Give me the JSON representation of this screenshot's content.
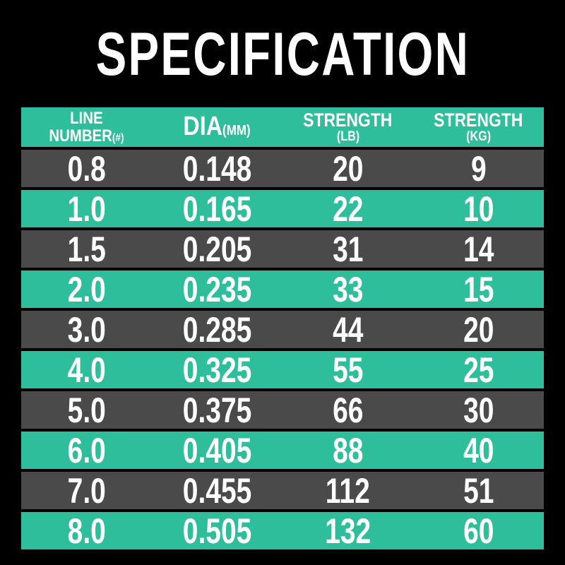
{
  "title": "SPECIFICATION",
  "colors": {
    "background": "#000000",
    "teal": "#2fbe9b",
    "gray": "#4a4a4a",
    "text": "#ffffff"
  },
  "table": {
    "columns": [
      {
        "line1": "LINE",
        "line2": "NUMBER",
        "sub": "(#)"
      },
      {
        "line1": "DIA",
        "sub": "(MM)"
      },
      {
        "line1": "STRENGTH",
        "sub": "(LB)"
      },
      {
        "line1": "STRENGTH",
        "sub": "(KG)"
      }
    ],
    "rows": [
      [
        "0.8",
        "0.148",
        "20",
        "9"
      ],
      [
        "1.0",
        "0.165",
        "22",
        "10"
      ],
      [
        "1.5",
        "0.205",
        "31",
        "14"
      ],
      [
        "2.0",
        "0.235",
        "33",
        "15"
      ],
      [
        "3.0",
        "0.285",
        "44",
        "20"
      ],
      [
        "4.0",
        "0.325",
        "55",
        "25"
      ],
      [
        "5.0",
        "0.375",
        "66",
        "30"
      ],
      [
        "6.0",
        "0.405",
        "88",
        "40"
      ],
      [
        "7.0",
        "0.455",
        "112",
        "51"
      ],
      [
        "8.0",
        "0.505",
        "132",
        "60"
      ]
    ]
  },
  "chart_data": {
    "type": "table",
    "title": "SPECIFICATION",
    "columns": [
      "LINE NUMBER(#)",
      "DIA(MM)",
      "STRENGTH(LB)",
      "STRENGTH(KG)"
    ],
    "rows": [
      [
        0.8,
        0.148,
        20,
        9
      ],
      [
        1.0,
        0.165,
        22,
        10
      ],
      [
        1.5,
        0.205,
        31,
        14
      ],
      [
        2.0,
        0.235,
        33,
        15
      ],
      [
        3.0,
        0.285,
        44,
        20
      ],
      [
        4.0,
        0.325,
        55,
        25
      ],
      [
        5.0,
        0.375,
        66,
        30
      ],
      [
        6.0,
        0.405,
        88,
        40
      ],
      [
        7.0,
        0.455,
        112,
        51
      ],
      [
        8.0,
        0.505,
        132,
        60
      ]
    ],
    "layout": {
      "row_striping": [
        "gray",
        "teal"
      ],
      "header_bg": "#2fbe9b",
      "gray_row_bg": "#4a4a4a",
      "teal_row_bg": "#2fbe9b",
      "background": "#000000",
      "text_color": "#ffffff"
    }
  }
}
